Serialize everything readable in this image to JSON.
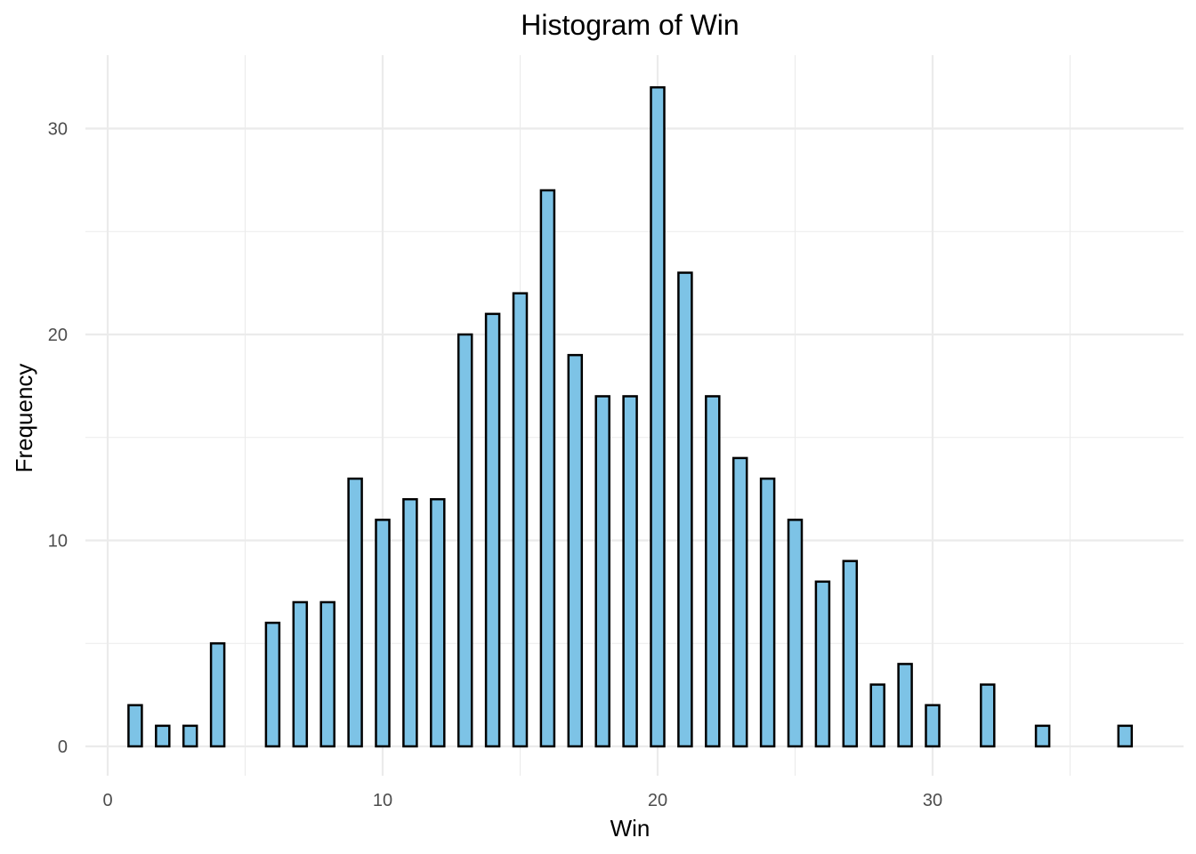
{
  "chart_data": {
    "type": "bar",
    "title": "Histogram of Win",
    "xlabel": "Win",
    "ylabel": "Frequency",
    "xlim": [
      0,
      37.5
    ],
    "ylim": [
      0,
      32
    ],
    "x_ticks": [
      0,
      10,
      20,
      30
    ],
    "y_ticks": [
      0,
      10,
      20,
      30
    ],
    "grid": true,
    "bar_color": "#7dc3e6",
    "bar_outline": "#000000",
    "x": [
      1,
      2,
      3,
      4,
      5,
      6,
      7,
      8,
      9,
      10,
      11,
      12,
      13,
      14,
      15,
      16,
      17,
      18,
      19,
      20,
      21,
      22,
      23,
      24,
      25,
      26,
      27,
      28,
      29,
      30,
      31,
      32,
      33,
      34,
      35,
      36,
      37
    ],
    "values": [
      2,
      1,
      1,
      5,
      0,
      6,
      7,
      7,
      13,
      11,
      12,
      12,
      20,
      21,
      22,
      27,
      19,
      17,
      17,
      32,
      23,
      17,
      14,
      13,
      11,
      8,
      9,
      3,
      4,
      2,
      0,
      3,
      0,
      1,
      0,
      0,
      1
    ]
  }
}
